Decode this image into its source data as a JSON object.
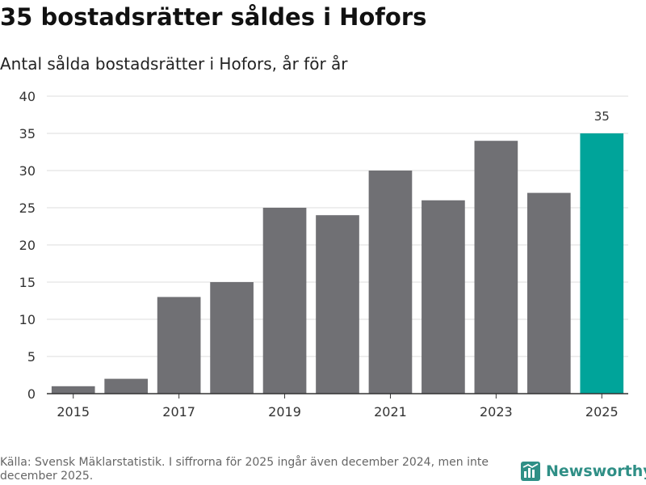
{
  "title": "35 bostadsrätter såldes i Hofors",
  "subtitle": "Antal sålda bostadsrätter i Hofors, år för år",
  "source": "Källa: Svensk Mäklarstatistik. I siffrorna för 2025 ingår även december 2024, men inte december 2025.",
  "brand": {
    "name": "Newsworthy",
    "icon": "newsworthy-logo-icon"
  },
  "colors": {
    "bar": "#707074",
    "highlight": "#00a49a",
    "grid": "#dddddd",
    "axis": "#333333",
    "text": "#333333"
  },
  "chart_data": {
    "type": "bar",
    "title": "35 bostadsrätter såldes i Hofors",
    "subtitle": "Antal sålda bostadsrätter i Hofors, år för år",
    "xlabel": "",
    "ylabel": "",
    "categories": [
      "2015",
      "2016",
      "2017",
      "2018",
      "2019",
      "2020",
      "2021",
      "2022",
      "2023",
      "2024",
      "2025"
    ],
    "values": [
      1,
      2,
      13,
      15,
      25,
      24,
      30,
      26,
      34,
      27,
      35
    ],
    "x_tick_labels": [
      "2015",
      "2017",
      "2019",
      "2021",
      "2023",
      "2025"
    ],
    "y_ticks": [
      0,
      5,
      10,
      15,
      20,
      25,
      30,
      35,
      40
    ],
    "ylim": [
      0,
      40
    ],
    "grid": true,
    "highlight_category": "2025",
    "annotations": [
      {
        "category": "2025",
        "text": "35"
      }
    ]
  }
}
